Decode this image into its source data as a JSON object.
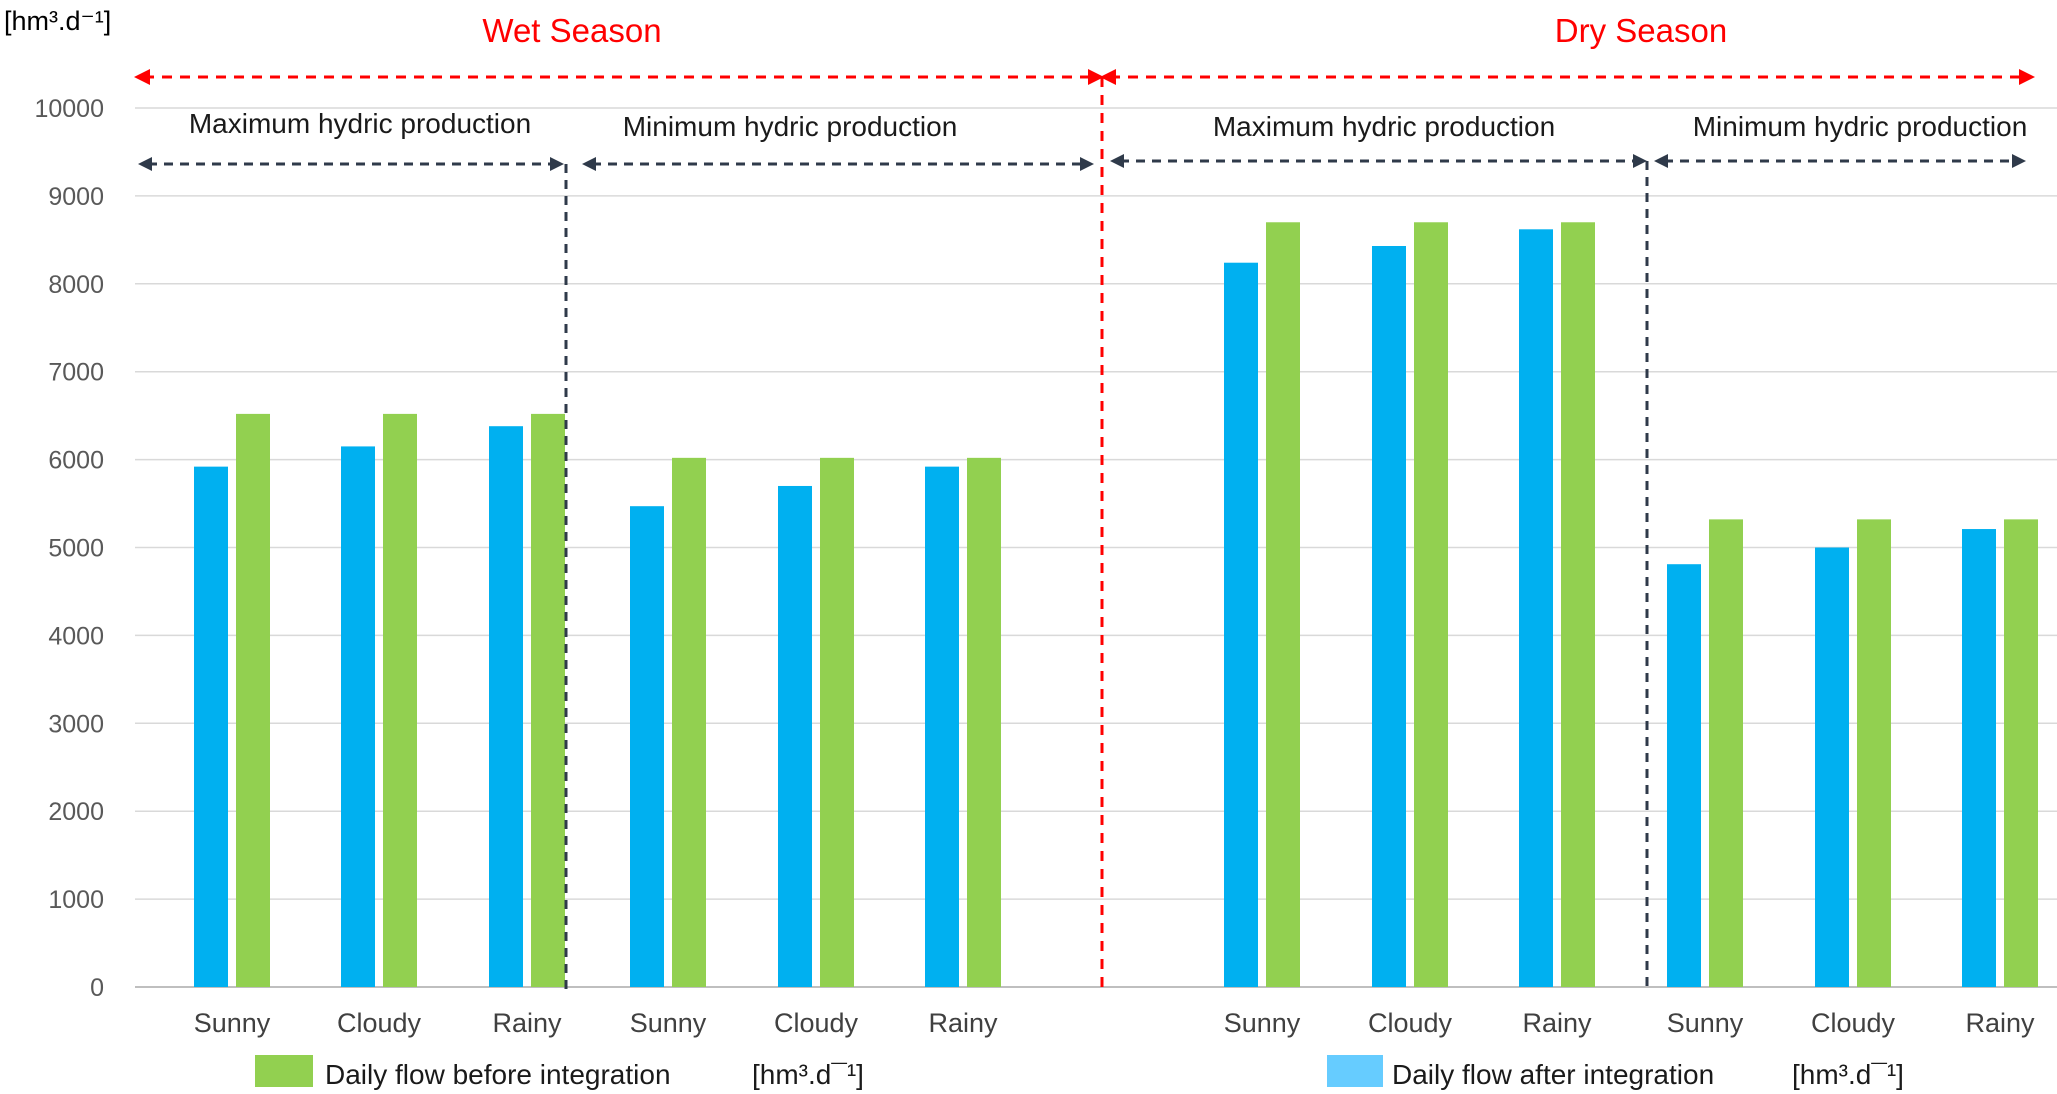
{
  "chart_data": {
    "type": "bar",
    "ylabel": "[hm³.d⁻¹]",
    "ylim": [
      0,
      10000
    ],
    "yticks": [
      0,
      1000,
      2000,
      3000,
      4000,
      5000,
      6000,
      7000,
      8000,
      9000,
      10000
    ],
    "grid": true,
    "seasons": [
      {
        "label": "Wet Season",
        "color": "#ff0000"
      },
      {
        "label": "Dry Season",
        "color": "#ff0000"
      }
    ],
    "groups": [
      {
        "label": "Maximum hydric production"
      },
      {
        "label": "Minimum hydric production"
      },
      {
        "label": "Maximum hydric production"
      },
      {
        "label": "Minimum hydric production"
      }
    ],
    "categories": [
      "Sunny",
      "Cloudy",
      "Rainy",
      "Sunny",
      "Cloudy",
      "Rainy",
      "Sunny",
      "Cloudy",
      "Rainy",
      "Sunny",
      "Cloudy",
      "Rainy"
    ],
    "series": [
      {
        "name": "Daily flow after integration",
        "color": "#00b0f0",
        "values": [
          5920,
          6150,
          6380,
          5470,
          5700,
          5920,
          8240,
          8430,
          8620,
          4810,
          5000,
          5210
        ]
      },
      {
        "name": "Daily flow before integration",
        "color": "#92d050",
        "values": [
          6520,
          6520,
          6520,
          6020,
          6020,
          6020,
          8700,
          8700,
          8700,
          5320,
          5320,
          5320
        ]
      }
    ],
    "legend": [
      {
        "label": "Daily flow before integration",
        "unit": "[hm³.d¯¹]",
        "color": "#92d050"
      },
      {
        "label": "Daily flow after integration",
        "unit": "[hm³.d¯¹]",
        "color": "#66ccff"
      }
    ],
    "legend_position": "bottom"
  }
}
